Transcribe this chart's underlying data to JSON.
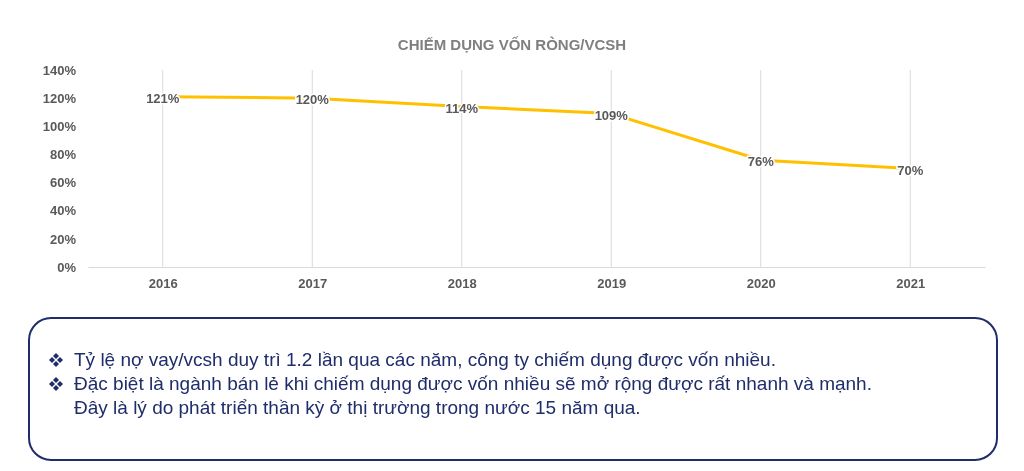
{
  "chart_data": {
    "type": "line",
    "title": "CHIẾM DỤNG VỐN RÒNG/VCSH",
    "categories": [
      "2016",
      "2017",
      "2018",
      "2019",
      "2020",
      "2021"
    ],
    "series": [
      {
        "color": "#ffc000",
        "values": [
          121,
          120,
          114,
          109,
          76,
          70
        ],
        "value_labels": [
          "121%",
          "120%",
          "114%",
          "109%",
          "76%",
          "70%"
        ]
      }
    ],
    "ylim": [
      0,
      140
    ],
    "yticks": [
      {
        "value": 0,
        "label": "0%"
      },
      {
        "value": 20,
        "label": "20%"
      },
      {
        "value": 40,
        "label": "40%"
      },
      {
        "value": 60,
        "label": "60%"
      },
      {
        "value": 80,
        "label": "80%"
      },
      {
        "value": 100,
        "label": "100%"
      },
      {
        "value": 120,
        "label": "120%"
      },
      {
        "value": 140,
        "label": "140%"
      }
    ],
    "grid": "x",
    "marker": "none",
    "line_style": "solid",
    "annotations": [
      "Tỷ lệ nợ vay/vcsh duy trì 1.2 lần qua các năm, công ty chiếm dụng được vốn nhiều.",
      "Đặc biệt là ngành bán lẻ khi chiếm dụng được vốn nhiều sẽ mở rộng được rất nhanh và mạnh. Đây là lý do phát triển thần kỳ ở thị trường trong nước 15 năm qua."
    ]
  }
}
